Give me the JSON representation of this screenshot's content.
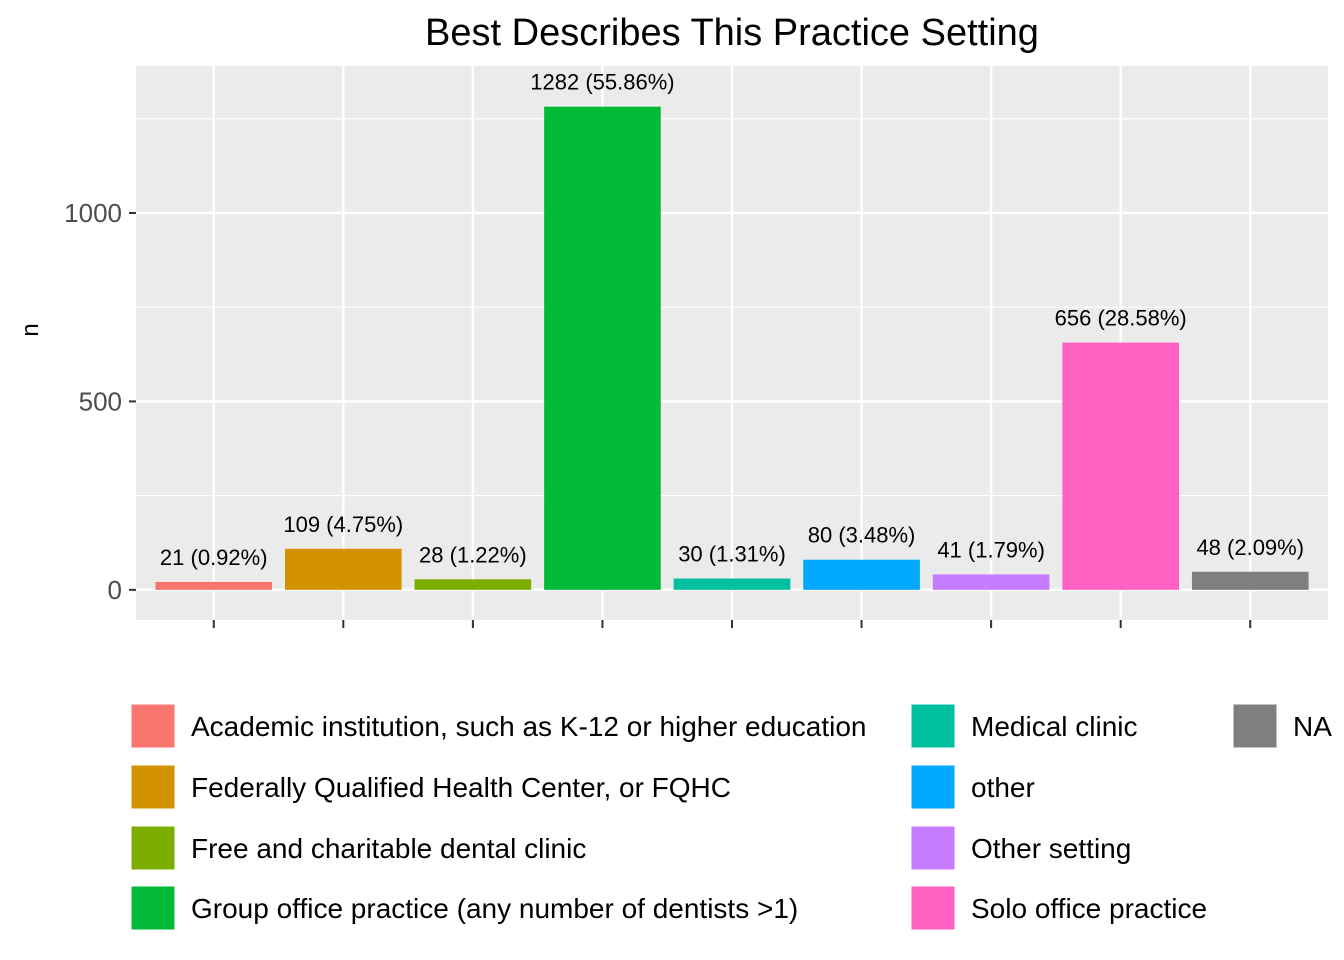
{
  "chart_data": {
    "type": "bar",
    "title": "Best Describes This Practice Setting",
    "xlabel": "",
    "ylabel": "n",
    "ylim": [
      -80,
      1390
    ],
    "yticks": [
      0,
      500,
      1000
    ],
    "grid": true,
    "legend_position": "bottom",
    "categories": [
      "Academic institution, such as K-12 or higher education",
      "Federally Qualified Health Center, or FQHC",
      "Free and charitable dental clinic",
      "Group office practice (any number of dentists >1)",
      "Medical clinic",
      "other",
      "Other setting",
      "Solo office practice",
      "NA"
    ],
    "values": [
      21,
      109,
      28,
      1282,
      30,
      80,
      41,
      656,
      48
    ],
    "data_labels": [
      "21 (0.92%)",
      "109 (4.75%)",
      "28 (1.22%)",
      "1282 (55.86%)",
      "30 (1.31%)",
      "80 (3.48%)",
      "41 (1.79%)",
      "656 (28.58%)",
      "48 (2.09%)"
    ],
    "colors": [
      "#F8766D",
      "#D39200",
      "#7CAE00",
      "#00BA38",
      "#00C19F",
      "#00A9FF",
      "#C77CFF",
      "#FF61C3",
      "#7F7F7F"
    ],
    "panel_background": "#EBEBEB",
    "grid_color": "#FFFFFF"
  }
}
